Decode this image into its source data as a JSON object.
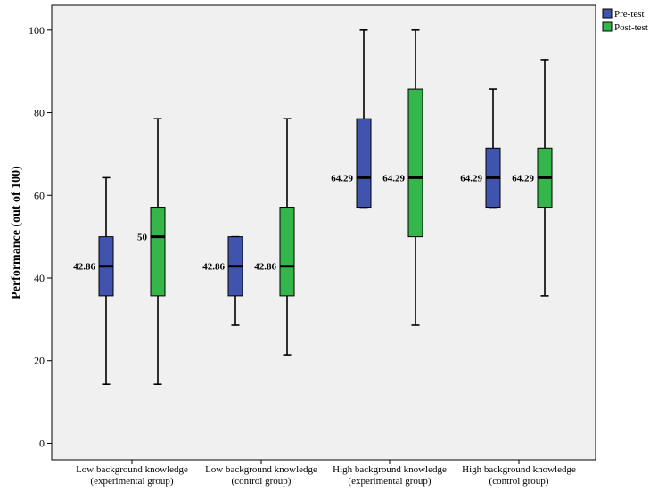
{
  "chart_data": {
    "type": "boxplot",
    "ylabel": "Performance (out of 100)",
    "xlabel": "",
    "ylim": [
      -4,
      106
    ],
    "yticks": [
      0,
      20,
      40,
      60,
      80,
      100
    ],
    "y_tick_labels": [
      "0",
      "20",
      "40",
      "60",
      "80",
      "100"
    ],
    "grid": false,
    "legend_position": "top-right",
    "categories": [
      [
        "Low background knowledge",
        "(experimental group)"
      ],
      [
        "Low background knowledge",
        "(control group)"
      ],
      [
        "High background knowledge",
        "(experimental group)"
      ],
      [
        "High background knowledge",
        "(control group)"
      ]
    ],
    "series": [
      {
        "name": "Pre-test",
        "color": "#4054ad",
        "boxes": [
          {
            "min": 14.29,
            "q1": 35.71,
            "median": 42.86,
            "q3": 50.0,
            "max": 64.29,
            "label": "42.86"
          },
          {
            "min": 28.57,
            "q1": 35.71,
            "median": 42.86,
            "q3": 50.0,
            "max": 50.0,
            "label": "42.86"
          },
          {
            "min": 57.14,
            "q1": 57.14,
            "median": 64.29,
            "q3": 78.57,
            "max": 100.0,
            "label": "64.29"
          },
          {
            "min": 57.14,
            "q1": 57.14,
            "median": 64.29,
            "q3": 71.43,
            "max": 85.71,
            "label": "64.29"
          }
        ]
      },
      {
        "name": "Post-test",
        "color": "#34b64b",
        "boxes": [
          {
            "min": 14.29,
            "q1": 35.71,
            "median": 50.0,
            "q3": 57.14,
            "max": 78.57,
            "label": "50"
          },
          {
            "min": 21.43,
            "q1": 35.71,
            "median": 42.86,
            "q3": 57.14,
            "max": 78.57,
            "label": "42.86"
          },
          {
            "min": 28.57,
            "q1": 50.0,
            "median": 64.29,
            "q3": 85.71,
            "max": 100.0,
            "label": "64.29"
          },
          {
            "min": 35.71,
            "q1": 57.14,
            "median": 64.29,
            "q3": 71.43,
            "max": 92.86,
            "label": "64.29"
          }
        ]
      }
    ],
    "colors": {
      "plot_background": "#f0f0f0",
      "frame": "#000000"
    }
  }
}
